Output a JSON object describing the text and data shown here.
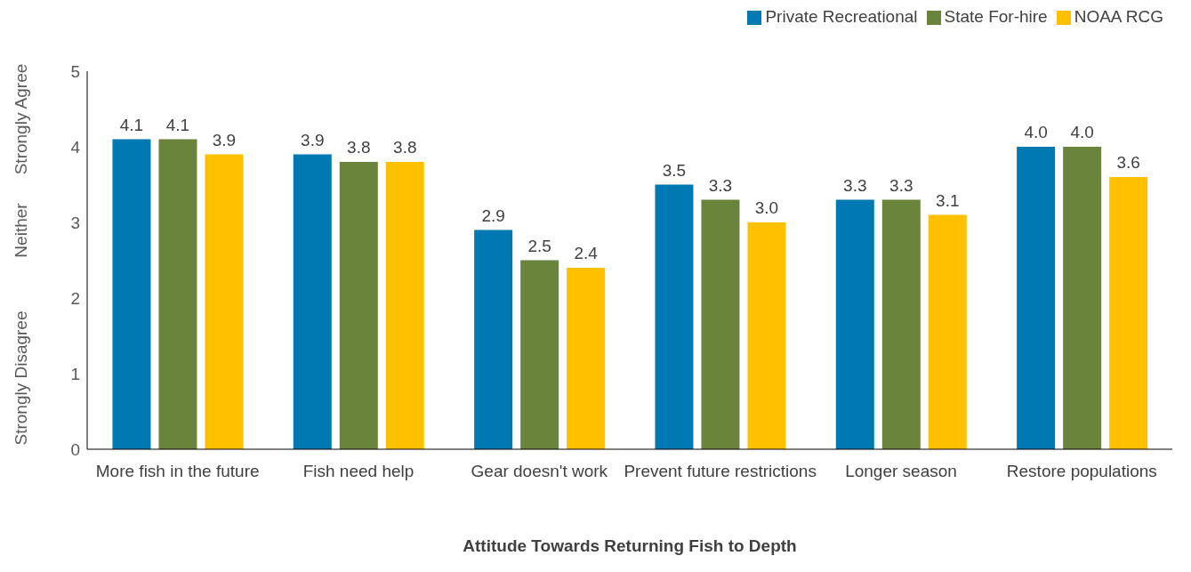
{
  "chart_data": {
    "type": "bar",
    "xlabel": "Attitude Towards Returning Fish to Depth",
    "categories": [
      "More fish in the future",
      "Fish need help",
      "Gear doesn't work",
      "Prevent future restrictions",
      "Longer season",
      "Restore populations"
    ],
    "series": [
      {
        "name": "Private Recreational",
        "color": "#0079b3",
        "values": [
          4.1,
          3.9,
          2.9,
          3.5,
          3.3,
          4.0
        ],
        "value_labels": [
          "4.1",
          "3.9",
          "2.9",
          "3.5",
          "3.3",
          "4.0"
        ]
      },
      {
        "name": "State For-hire",
        "color": "#6a843b",
        "values": [
          4.1,
          3.8,
          2.5,
          3.3,
          3.3,
          4.0
        ],
        "value_labels": [
          "4.1",
          "3.8",
          "2.5",
          "3.3",
          "3.3",
          "4.0"
        ]
      },
      {
        "name": "NOAA RCG",
        "color": "#ffc000",
        "values": [
          3.9,
          3.8,
          2.4,
          3.0,
          3.1,
          3.6
        ],
        "value_labels": [
          "3.9",
          "3.8",
          "2.4",
          "3.0",
          "3.1",
          "3.6"
        ]
      }
    ],
    "ylim": [
      0,
      5
    ],
    "yticks": [
      0,
      1,
      2,
      3,
      4,
      5
    ],
    "grid": false,
    "legend": "top right",
    "annotations": [
      "Strongly Disagree",
      "Neither",
      "Strongly Agree"
    ]
  }
}
